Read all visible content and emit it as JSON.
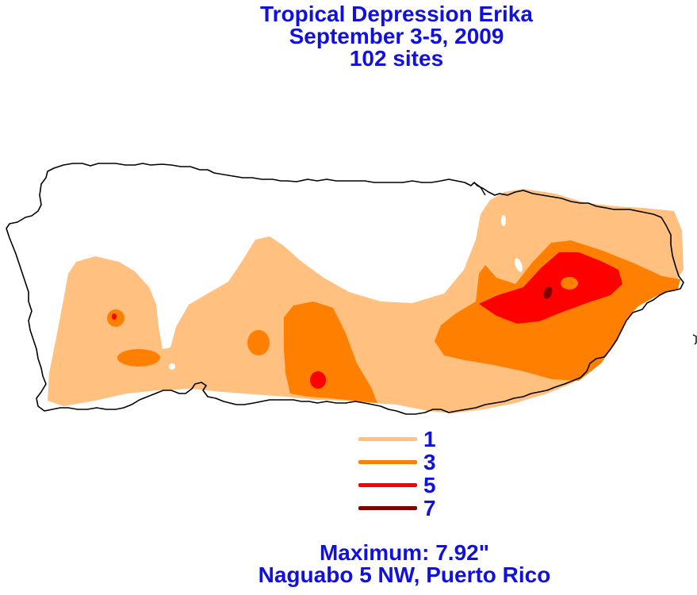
{
  "title": {
    "line1": "Tropical Depression Erika",
    "line2": "September 3-5, 2009",
    "line3": "102 sites"
  },
  "legend": {
    "items": [
      {
        "label": "1",
        "color": "#ffc080"
      },
      {
        "label": "3",
        "color": "#ff8000"
      },
      {
        "label": "5",
        "color": "#ff0000"
      },
      {
        "label": "7",
        "color": "#800000"
      }
    ]
  },
  "footer": {
    "maximum": "Maximum:  7.92\"",
    "location": "Naguabo 5 NW, Puerto Rico"
  },
  "colors": {
    "title_text": "#1010e0",
    "outline": "#000000",
    "contour_1": "#ffc080",
    "contour_3": "#ff8000",
    "contour_5": "#ff0000",
    "contour_7": "#800000"
  }
}
